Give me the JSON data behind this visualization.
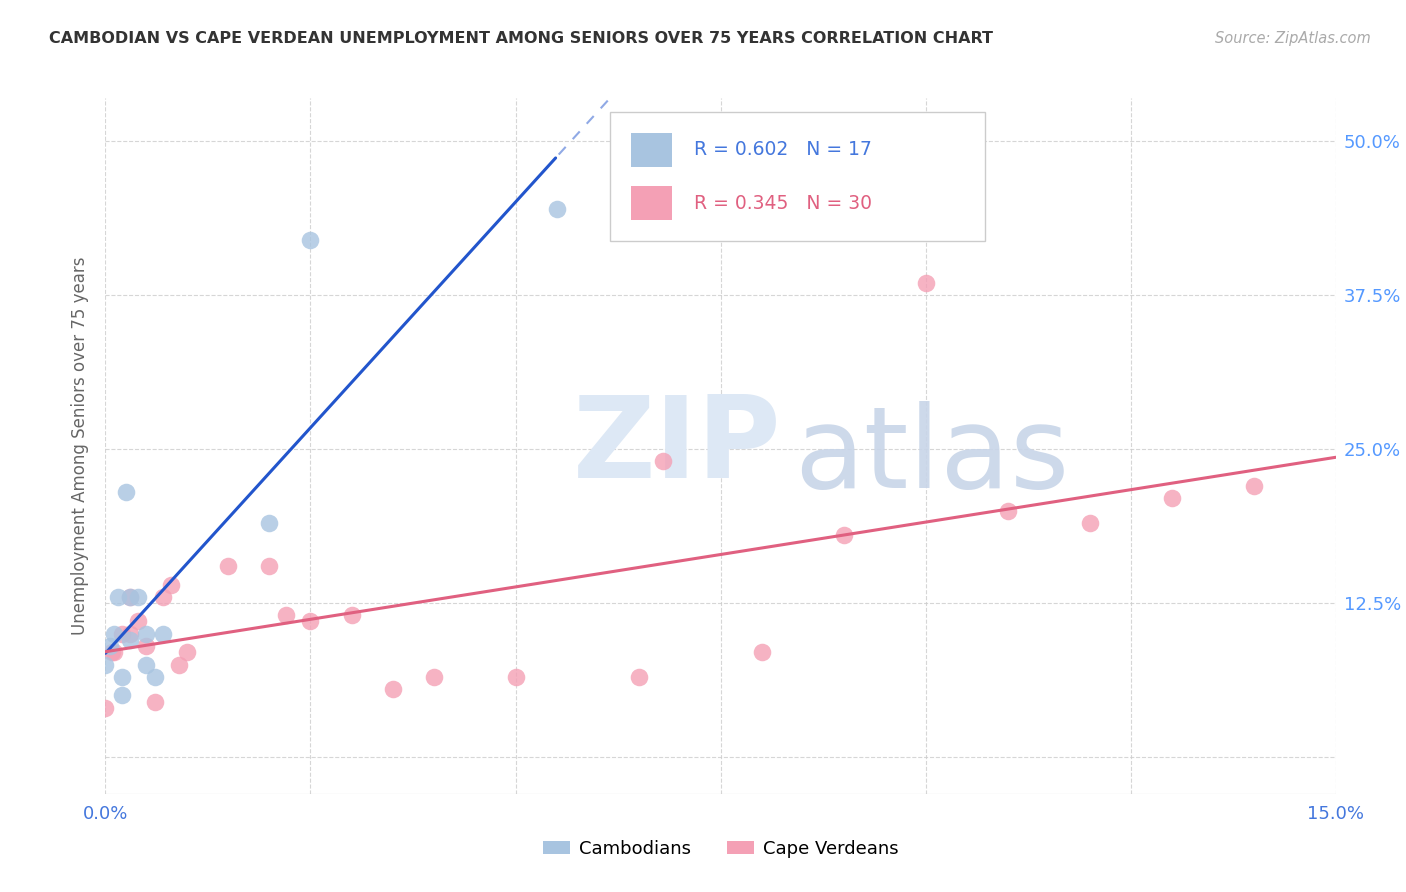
{
  "title": "CAMBODIAN VS CAPE VERDEAN UNEMPLOYMENT AMONG SENIORS OVER 75 YEARS CORRELATION CHART",
  "source": "Source: ZipAtlas.com",
  "ylabel": "Unemployment Among Seniors over 75 years",
  "xlim": [
    0,
    0.15
  ],
  "ylim": [
    -0.03,
    0.535
  ],
  "xticks_show": [
    0.0,
    0.15
  ],
  "xtick_labels_show": [
    "0.0%",
    "15.0%"
  ],
  "xticks_grid": [
    0.0,
    0.025,
    0.05,
    0.075,
    0.1,
    0.125,
    0.15
  ],
  "yticks": [
    0.0,
    0.125,
    0.25,
    0.375,
    0.5
  ],
  "ytick_labels": [
    "",
    "12.5%",
    "25.0%",
    "37.5%",
    "50.0%"
  ],
  "cambodian_color": "#a8c4e0",
  "capeverdean_color": "#f4a0b5",
  "trendline_cambodian_color": "#2255cc",
  "trendline_capeverdean_color": "#e06080",
  "legend_R_N_color": "#4477dd",
  "legend_cape_R_N_color": "#e06080",
  "legend_cambodian_R": "0.602",
  "legend_cambodian_N": "17",
  "legend_capeverdean_R": "0.345",
  "legend_capeverdean_N": "30",
  "ytick_color": "#5599ff",
  "cambodian_x": [
    0.0,
    0.0005,
    0.001,
    0.0015,
    0.002,
    0.002,
    0.0025,
    0.003,
    0.003,
    0.004,
    0.005,
    0.005,
    0.006,
    0.007,
    0.02,
    0.025,
    0.055
  ],
  "cambodian_y": [
    0.075,
    0.09,
    0.1,
    0.13,
    0.05,
    0.065,
    0.215,
    0.095,
    0.13,
    0.13,
    0.1,
    0.075,
    0.065,
    0.1,
    0.19,
    0.42,
    0.445
  ],
  "capeverdean_x": [
    0.0,
    0.0008,
    0.001,
    0.002,
    0.003,
    0.003,
    0.004,
    0.005,
    0.006,
    0.007,
    0.008,
    0.009,
    0.01,
    0.015,
    0.02,
    0.022,
    0.025,
    0.03,
    0.035,
    0.04,
    0.05,
    0.065,
    0.068,
    0.08,
    0.09,
    0.1,
    0.11,
    0.12,
    0.13,
    0.14
  ],
  "capeverdean_y": [
    0.04,
    0.085,
    0.085,
    0.1,
    0.1,
    0.13,
    0.11,
    0.09,
    0.045,
    0.13,
    0.14,
    0.075,
    0.085,
    0.155,
    0.155,
    0.115,
    0.11,
    0.115,
    0.055,
    0.065,
    0.065,
    0.065,
    0.24,
    0.085,
    0.18,
    0.385,
    0.2,
    0.19,
    0.21,
    0.22
  ],
  "marker_size": 160,
  "marker_alpha": 0.8
}
